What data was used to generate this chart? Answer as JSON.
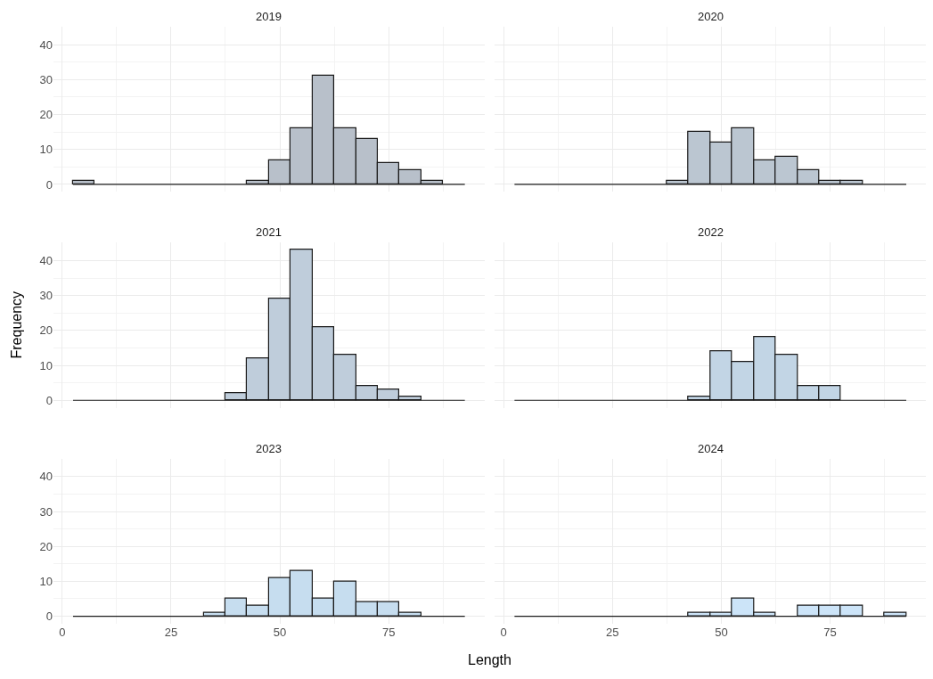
{
  "chart_data": [
    {
      "type": "histogram",
      "title": "2019",
      "bins": [
        2.5,
        7.5,
        12.5,
        17.5,
        22.5,
        27.5,
        32.5,
        37.5,
        42.5,
        47.5,
        52.5,
        57.5,
        62.5,
        67.5,
        72.5,
        77.5,
        82.5,
        87.5,
        92.5
      ],
      "values": [
        1,
        0,
        0,
        0,
        0,
        0,
        0,
        0,
        1,
        7,
        16,
        31,
        16,
        13,
        6,
        4,
        1,
        0
      ],
      "color": "#b8c0ca",
      "xlim": [
        -2,
        97
      ],
      "ylim": [
        -2.15,
        45.15
      ],
      "xticks": [
        0,
        25,
        50,
        75
      ],
      "yticks": [
        0,
        10,
        20,
        30,
        40
      ],
      "grid": true,
      "tick_labels": "y"
    },
    {
      "type": "histogram",
      "title": "2020",
      "bins": [
        2.5,
        7.5,
        12.5,
        17.5,
        22.5,
        27.5,
        32.5,
        37.5,
        42.5,
        47.5,
        52.5,
        57.5,
        62.5,
        67.5,
        72.5,
        77.5,
        82.5,
        87.5,
        92.5
      ],
      "values": [
        0,
        0,
        0,
        0,
        0,
        0,
        0,
        1,
        15,
        12,
        16,
        7,
        8,
        4,
        1,
        1,
        0,
        0
      ],
      "color": "#bbc6d1",
      "xlim": [
        -2,
        97
      ],
      "ylim": [
        -2.15,
        45.15
      ],
      "xticks": [
        0,
        25,
        50,
        75
      ],
      "yticks": [
        0,
        10,
        20,
        30,
        40
      ],
      "grid": true,
      "tick_labels": false
    },
    {
      "type": "histogram",
      "title": "2021",
      "ylabel": "Frequency",
      "bins": [
        2.5,
        7.5,
        12.5,
        17.5,
        22.5,
        27.5,
        32.5,
        37.5,
        42.5,
        47.5,
        52.5,
        57.5,
        62.5,
        67.5,
        72.5,
        77.5,
        82.5,
        87.5,
        92.5
      ],
      "values": [
        0,
        0,
        0,
        0,
        0,
        0,
        0,
        2,
        12,
        29,
        43,
        21,
        13,
        4,
        3,
        1,
        0,
        0
      ],
      "color": "#bfcddb",
      "xlim": [
        -2,
        97
      ],
      "ylim": [
        -2.15,
        45.15
      ],
      "xticks": [
        0,
        25,
        50,
        75
      ],
      "yticks": [
        0,
        10,
        20,
        30,
        40
      ],
      "grid": true,
      "tick_labels": "y"
    },
    {
      "type": "histogram",
      "title": "2022",
      "bins": [
        2.5,
        7.5,
        12.5,
        17.5,
        22.5,
        27.5,
        32.5,
        37.5,
        42.5,
        47.5,
        52.5,
        57.5,
        62.5,
        67.5,
        72.5,
        77.5,
        82.5,
        87.5,
        92.5
      ],
      "values": [
        0,
        0,
        0,
        0,
        0,
        0,
        0,
        0,
        1,
        14,
        11,
        18,
        13,
        4,
        4,
        0,
        0,
        0
      ],
      "color": "#c2d5e5",
      "xlim": [
        -2,
        97
      ],
      "ylim": [
        -2.15,
        45.15
      ],
      "xticks": [
        0,
        25,
        50,
        75
      ],
      "yticks": [
        0,
        10,
        20,
        30,
        40
      ],
      "grid": true,
      "tick_labels": false
    },
    {
      "type": "histogram",
      "title": "2023",
      "xlabel": "Length",
      "bins": [
        2.5,
        7.5,
        12.5,
        17.5,
        22.5,
        27.5,
        32.5,
        37.5,
        42.5,
        47.5,
        52.5,
        57.5,
        62.5,
        67.5,
        72.5,
        77.5,
        82.5,
        87.5,
        92.5
      ],
      "values": [
        0,
        0,
        0,
        0,
        0,
        0,
        1,
        5,
        3,
        11,
        13,
        5,
        10,
        4,
        4,
        1,
        0,
        0
      ],
      "color": "#c6ddef",
      "xlim": [
        -2,
        97
      ],
      "ylim": [
        -2.15,
        45.15
      ],
      "xticks": [
        0,
        25,
        50,
        75
      ],
      "yticks": [
        0,
        10,
        20,
        30,
        40
      ],
      "grid": true
    },
    {
      "type": "histogram",
      "title": "2024",
      "bins": [
        2.5,
        7.5,
        12.5,
        17.5,
        22.5,
        27.5,
        32.5,
        37.5,
        42.5,
        47.5,
        52.5,
        57.5,
        62.5,
        67.5,
        72.5,
        77.5,
        82.5,
        87.5,
        92.5
      ],
      "values": [
        0,
        0,
        0,
        0,
        0,
        0,
        0,
        0,
        1,
        1,
        5,
        1,
        0,
        3,
        3,
        3,
        0,
        1
      ],
      "color": "#cce4f8",
      "xlim": [
        -2,
        97
      ],
      "ylim": [
        -2.15,
        45.15
      ],
      "xticks": [
        0,
        25,
        50,
        75
      ],
      "yticks": [
        0,
        10,
        20,
        30,
        40
      ],
      "grid": true,
      "tick_labels": "x"
    }
  ]
}
